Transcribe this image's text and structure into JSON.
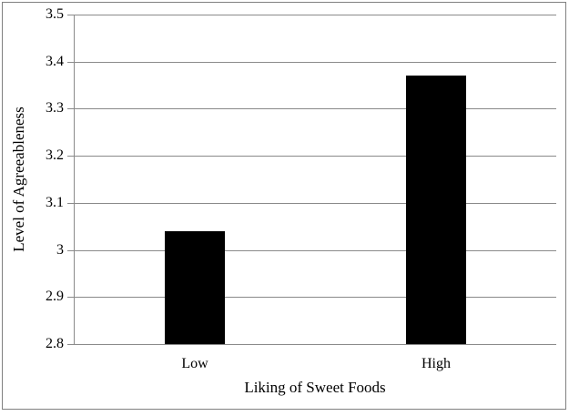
{
  "figure": {
    "background": "#ffffff",
    "border_color": "#808080"
  },
  "chart_data": {
    "type": "bar",
    "categories": [
      "Low",
      "High"
    ],
    "values": [
      3.04,
      3.37
    ],
    "xlabel": "Liking of Sweet Foods",
    "ylabel": "Level of Agreeableness",
    "ylim": [
      2.8,
      3.5
    ],
    "ytick_step": 0.1,
    "yticks": [
      {
        "value": 3.5,
        "label": "3.5"
      },
      {
        "value": 3.4,
        "label": "3.4"
      },
      {
        "value": 3.3,
        "label": "3.3"
      },
      {
        "value": 3.2,
        "label": "3.2"
      },
      {
        "value": 3.1,
        "label": "3.1"
      },
      {
        "value": 3.0,
        "label": "3"
      },
      {
        "value": 2.9,
        "label": "2.9"
      },
      {
        "value": 2.8,
        "label": "2.8"
      }
    ],
    "bar_color": "#000000",
    "gridline_color": "#8a8a8a",
    "axis_color": "#8a8a8a",
    "grid": true,
    "legend": false
  }
}
